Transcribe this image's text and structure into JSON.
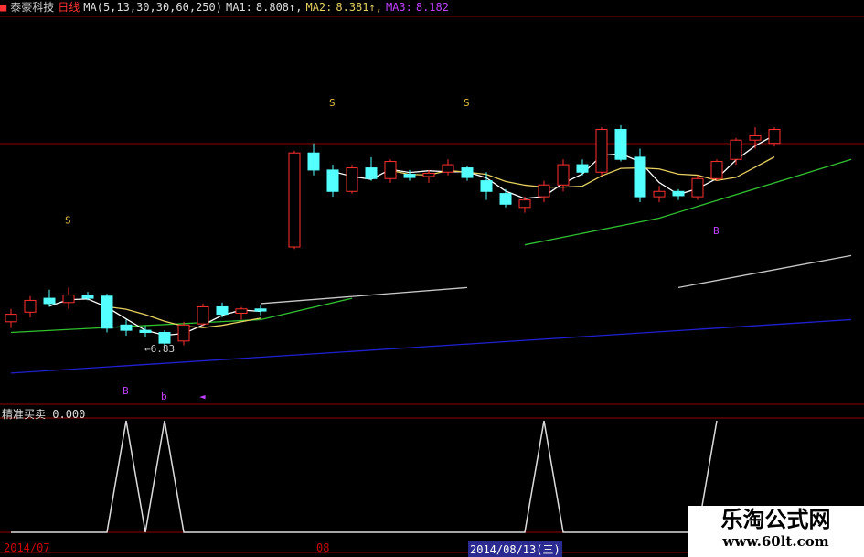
{
  "header": {
    "stock_name": "泰豪科技",
    "period": "日线",
    "ma_spec": "MA(5,13,30,30,60,250)",
    "ma1_label": "MA1:",
    "ma1_value": "8.808↑,",
    "ma2_label": "MA2:",
    "ma2_value": "8.381↑,",
    "ma3_label": "MA3:",
    "ma3_value": "8.182"
  },
  "colors": {
    "up": "#ff3030",
    "down": "#54ffff",
    "ma1": "#ffffff",
    "ma2": "#e6d060",
    "green": "#30c030",
    "gray": "#c8c8c8",
    "blue": "#2020d0",
    "grid": "#900000",
    "marker_s": "#e6c040",
    "marker_b": "#c040ff"
  },
  "chart_data": {
    "type": "candlestick",
    "candles": [
      [
        7.08,
        7.2,
        7.02,
        7.15
      ],
      [
        7.17,
        7.32,
        7.12,
        7.28
      ],
      [
        7.3,
        7.38,
        7.22,
        7.25
      ],
      [
        7.26,
        7.4,
        7.2,
        7.33
      ],
      [
        7.33,
        7.36,
        7.28,
        7.3
      ],
      [
        7.32,
        7.34,
        6.98,
        7.02
      ],
      [
        7.05,
        7.1,
        6.95,
        7.0
      ],
      [
        7.0,
        7.04,
        6.94,
        6.98
      ],
      [
        6.98,
        7.0,
        6.83,
        6.88
      ],
      [
        6.9,
        7.08,
        6.86,
        7.05
      ],
      [
        7.06,
        7.25,
        7.04,
        7.22
      ],
      [
        7.22,
        7.26,
        7.12,
        7.15
      ],
      [
        7.16,
        7.22,
        7.1,
        7.2
      ],
      [
        7.2,
        7.24,
        7.14,
        7.18
      ],
      [
        7.78,
        8.68,
        7.76,
        8.66
      ],
      [
        8.66,
        8.75,
        8.45,
        8.5
      ],
      [
        8.5,
        8.55,
        8.25,
        8.3
      ],
      [
        8.3,
        8.55,
        8.28,
        8.52
      ],
      [
        8.52,
        8.62,
        8.4,
        8.42
      ],
      [
        8.42,
        8.6,
        8.38,
        8.58
      ],
      [
        8.46,
        8.5,
        8.4,
        8.43
      ],
      [
        8.44,
        8.5,
        8.38,
        8.47
      ],
      [
        8.48,
        8.6,
        8.45,
        8.55
      ],
      [
        8.52,
        8.54,
        8.4,
        8.43
      ],
      [
        8.4,
        8.48,
        8.22,
        8.3
      ],
      [
        8.28,
        8.32,
        8.15,
        8.18
      ],
      [
        8.15,
        8.25,
        8.1,
        8.22
      ],
      [
        8.25,
        8.4,
        8.2,
        8.36
      ],
      [
        8.36,
        8.6,
        8.3,
        8.55
      ],
      [
        8.55,
        8.6,
        8.45,
        8.48
      ],
      [
        8.48,
        8.9,
        8.45,
        8.88
      ],
      [
        8.88,
        8.92,
        8.58,
        8.6
      ],
      [
        8.62,
        8.7,
        8.2,
        8.25
      ],
      [
        8.25,
        8.35,
        8.2,
        8.3
      ],
      [
        8.3,
        8.32,
        8.22,
        8.26
      ],
      [
        8.25,
        8.45,
        8.22,
        8.42
      ],
      [
        8.42,
        8.6,
        8.4,
        8.58
      ],
      [
        8.6,
        8.8,
        8.55,
        8.78
      ],
      [
        8.78,
        8.9,
        8.7,
        8.82
      ],
      [
        8.75,
        8.9,
        8.72,
        8.88
      ]
    ],
    "lines": {
      "green": [
        [
          [
            0,
            6.98
          ],
          [
            13,
            7.1
          ],
          [
            17,
            7.3
          ]
        ],
        [
          [
            26,
            7.8
          ],
          [
            33,
            8.05
          ],
          [
            43,
            8.6
          ]
        ]
      ],
      "gray": [
        [
          [
            13,
            7.25
          ],
          [
            23,
            7.4
          ]
        ],
        [
          [
            34,
            7.4
          ],
          [
            43,
            7.7
          ]
        ]
      ],
      "blue": [
        [
          [
            0,
            6.6
          ],
          [
            43,
            7.1
          ]
        ]
      ]
    },
    "low_annotation": "6.83",
    "markers": [
      {
        "i": 3,
        "p": 8.0,
        "t": "S",
        "kind": "s"
      },
      {
        "i": 16,
        "p": 9.1,
        "t": "S",
        "kind": "s"
      },
      {
        "i": 23,
        "p": 9.1,
        "t": "S",
        "kind": "s"
      },
      {
        "i": 6,
        "p": 6.4,
        "t": "B",
        "kind": "b"
      },
      {
        "i": 8,
        "p": 6.35,
        "t": "b",
        "kind": "b"
      },
      {
        "i": 10,
        "p": 6.35,
        "t": "◄",
        "kind": "b"
      },
      {
        "i": 36,
        "p": 7.9,
        "t": "B",
        "kind": "b"
      }
    ],
    "indicator": {
      "label": "精准买卖",
      "value": "0.000",
      "signals": [
        6,
        8,
        27,
        36
      ],
      "length": 37
    },
    "x_axis": [
      "2014/07",
      "08",
      "2014/08/13(三)"
    ]
  },
  "watermark": {
    "title": "乐淘公式网",
    "url": "www.60lt.com"
  }
}
